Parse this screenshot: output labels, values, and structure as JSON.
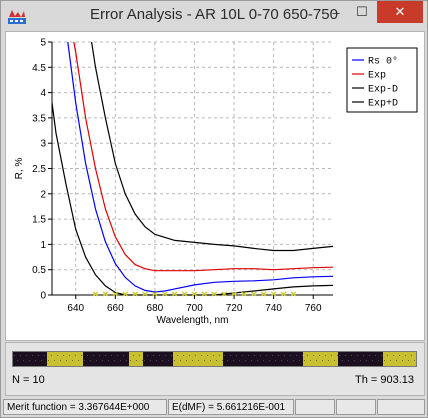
{
  "window": {
    "title": "Error Analysis - AR 10L 0-70 650-750",
    "min_glyph": "–",
    "max_glyph": "☐",
    "close_glyph": "✕"
  },
  "chart_data": {
    "type": "line",
    "title": "",
    "xlabel": "Wavelength, nm",
    "ylabel": "R, %",
    "xlim": [
      628,
      770
    ],
    "ylim": [
      0,
      5
    ],
    "xticks": [
      640,
      660,
      680,
      700,
      720,
      740,
      760
    ],
    "yticks": [
      0,
      0.5,
      1,
      1.5,
      2,
      2.5,
      3,
      3.5,
      4,
      4.5,
      5
    ],
    "xtick_labels": [
      "640",
      "660",
      "680",
      "700",
      "720",
      "740",
      "760"
    ],
    "ytick_labels": [
      "0",
      "0.5",
      "1",
      "1.5",
      "2",
      "2.5",
      "3",
      "3.5",
      "4",
      "4.5",
      "5"
    ],
    "grid": true,
    "legend_position": "top-right",
    "series": [
      {
        "name": "Rs 0°",
        "color": "#0000ff",
        "x": [
          636,
          640,
          645,
          650,
          655,
          660,
          665,
          670,
          675,
          680,
          685,
          690,
          700,
          710,
          720,
          730,
          740,
          750,
          760,
          770
        ],
        "y": [
          5.0,
          3.8,
          2.6,
          1.7,
          1.05,
          0.62,
          0.35,
          0.18,
          0.09,
          0.06,
          0.08,
          0.12,
          0.2,
          0.25,
          0.27,
          0.28,
          0.3,
          0.34,
          0.36,
          0.37
        ]
      },
      {
        "name": "Exp",
        "color": "#e00000",
        "x": [
          639,
          640,
          645,
          650,
          655,
          660,
          665,
          670,
          675,
          680,
          685,
          690,
          700,
          710,
          720,
          730,
          740,
          750,
          760,
          770
        ],
        "y": [
          5.0,
          4.8,
          3.5,
          2.5,
          1.7,
          1.15,
          0.8,
          0.6,
          0.52,
          0.48,
          0.48,
          0.48,
          0.48,
          0.5,
          0.52,
          0.52,
          0.5,
          0.52,
          0.54,
          0.55
        ]
      },
      {
        "name": "Exp-D",
        "color": "#000000",
        "x": [
          628,
          630,
          635,
          640,
          645,
          650,
          655,
          660,
          665,
          670,
          680,
          690,
          700,
          710,
          720,
          730,
          740,
          750,
          760,
          770
        ],
        "y": [
          3.8,
          3.2,
          2.2,
          1.3,
          0.75,
          0.4,
          0.18,
          0.05,
          0.0,
          0.0,
          0.0,
          0.0,
          0.0,
          0.0,
          0.04,
          0.08,
          0.12,
          0.16,
          0.18,
          0.19
        ]
      },
      {
        "name": "Exp+D",
        "color": "#000000",
        "x": [
          648,
          650,
          655,
          660,
          665,
          670,
          675,
          680,
          690,
          700,
          710,
          720,
          730,
          740,
          750,
          760,
          770
        ],
        "y": [
          5.0,
          4.5,
          3.5,
          2.6,
          2.0,
          1.6,
          1.35,
          1.2,
          1.08,
          1.04,
          1.0,
          0.97,
          0.92,
          0.88,
          0.88,
          0.92,
          0.96
        ]
      }
    ]
  },
  "progress": {
    "fraction": 1.0
  },
  "info": {
    "n_label": "N = 10",
    "th_label": "Th = 903.13"
  },
  "status": {
    "merit": "Merit function = 3.367644E+000",
    "edmf": "E(dMF) = 5.661216E-001",
    "cell3": "",
    "cell4": "",
    "cell5": ""
  }
}
